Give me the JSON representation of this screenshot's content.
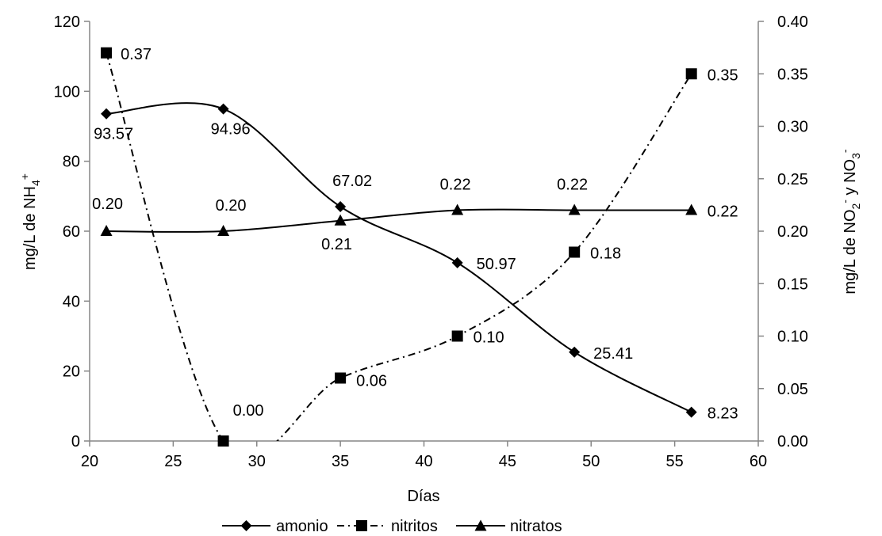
{
  "chart_data": {
    "type": "line",
    "title": "",
    "xlabel": "Días",
    "ylabel_left": {
      "main": "mg/L   de   NH",
      "sub": "4",
      "sup": "+"
    },
    "ylabel_right": {
      "p1": "mg/L   de   NO",
      "sub1": "2",
      "sup1": "-",
      "p2": " y  NO",
      "sub2": "3",
      "sup2": "-"
    },
    "xlim": [
      20,
      60
    ],
    "ylim_left": [
      0,
      120
    ],
    "ylim_right": [
      0,
      0.4
    ],
    "x_ticks": [
      "20",
      "25",
      "30",
      "35",
      "40",
      "45",
      "50",
      "55",
      "60"
    ],
    "y_ticks_left": [
      "0",
      "20",
      "40",
      "60",
      "80",
      "100",
      "120"
    ],
    "y_ticks_right": [
      "0.00",
      "0.05",
      "0.10",
      "0.15",
      "0.20",
      "0.25",
      "0.30",
      "0.35",
      "0.40"
    ],
    "grid": false,
    "legend_position": "bottom",
    "x": [
      21,
      28,
      35,
      42,
      49,
      56
    ],
    "series": [
      {
        "name": "amonio",
        "axis": "left",
        "marker": "diamond",
        "line_style": "solid",
        "smooth": true,
        "values": [
          93.57,
          94.96,
          67.02,
          50.97,
          25.41,
          8.23
        ],
        "labels": [
          "93.57",
          "94.96",
          "67.02",
          "50.97",
          "25.41",
          "8.23"
        ]
      },
      {
        "name": "nitritos",
        "axis": "right",
        "marker": "square",
        "line_style": "dash-dot",
        "smooth": true,
        "values": [
          0.37,
          0.0,
          0.06,
          0.1,
          0.18,
          0.35
        ],
        "labels": [
          "0.37",
          "0.00",
          "0.06",
          "0.10",
          "0.18",
          "0.35"
        ]
      },
      {
        "name": "nitratos",
        "axis": "right",
        "marker": "triangle",
        "line_style": "solid",
        "smooth": true,
        "values": [
          0.2,
          0.2,
          0.21,
          0.22,
          0.22,
          0.22
        ],
        "labels": [
          "0.20",
          "0.20",
          "0.21",
          "0.22",
          "0.22",
          "0.22"
        ]
      }
    ]
  }
}
